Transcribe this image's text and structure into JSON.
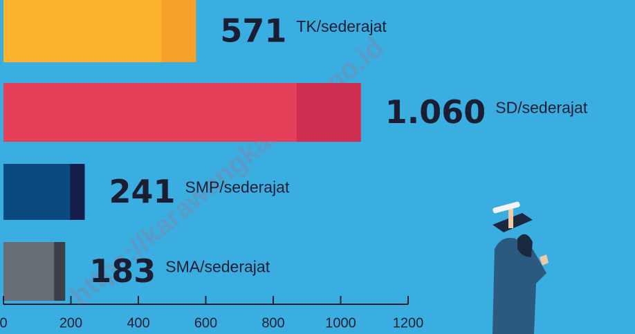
{
  "chart_data": {
    "type": "hbar",
    "categories": [
      "TK/sederajat",
      "SD/sederajat",
      "SMP/sederajat",
      "SMA/sederajat"
    ],
    "values": [
      571,
      1060,
      241,
      183
    ],
    "value_labels": [
      "571",
      "1.060",
      "241",
      "183"
    ],
    "colors": [
      "#fbb22f",
      "#e4405a",
      "#0b4a80",
      "#666d75"
    ],
    "shade_colors": [
      "#f6a02c",
      "#cf2f50",
      "#151d4a",
      "#3a3f48"
    ],
    "xlim": [
      0,
      1200
    ],
    "xticks": [
      0,
      200,
      400,
      600,
      800,
      1000,
      1200
    ]
  },
  "watermark": "https://karawangkab.bps.go.id"
}
